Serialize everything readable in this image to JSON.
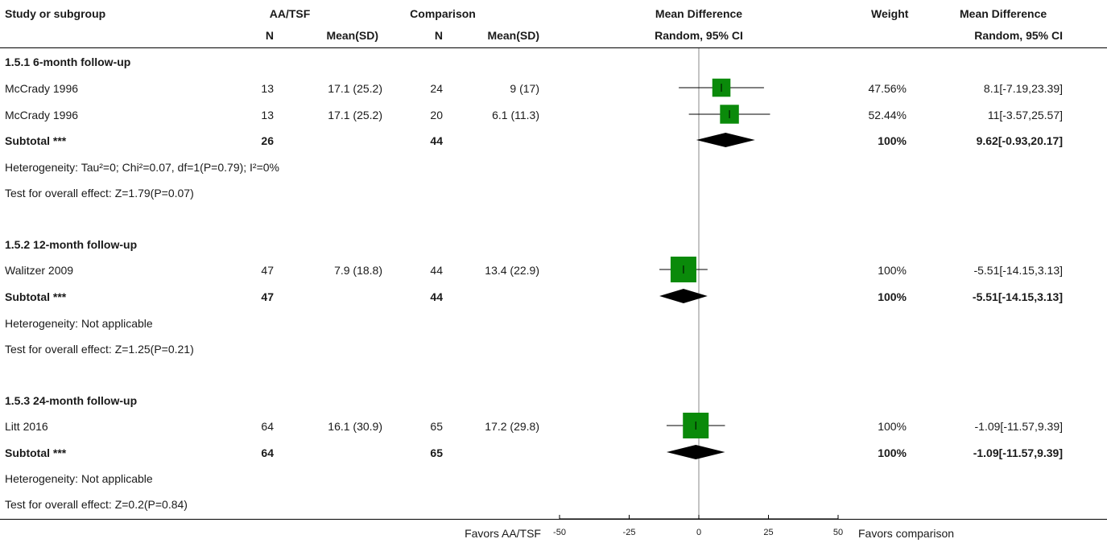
{
  "headers": {
    "study": "Study or subgroup",
    "group1": "AA/TSF",
    "group2": "Comparison",
    "md": "Mean Difference",
    "weight": "Weight",
    "md2": "Mean Difference",
    "n1": "N",
    "mean1": "Mean(SD)",
    "n2": "N",
    "mean2": "Mean(SD)",
    "md_method": "Random, 95% CI",
    "md2_method": "Random, 95% CI"
  },
  "subgroups": [
    {
      "title": "1.5.1 6-month follow-up",
      "studies": [
        {
          "name": "McCrady 1996",
          "n1": "13",
          "mean1": "17.1 (25.2)",
          "n2": "24",
          "mean2": "9 (17)",
          "weight": "47.56%",
          "ci": "8.1[-7.19,23.39]"
        },
        {
          "name": "McCrady 1996",
          "n1": "13",
          "mean1": "17.1 (25.2)",
          "n2": "20",
          "mean2": "6.1 (11.3)",
          "weight": "52.44%",
          "ci": "11[-3.57,25.57]"
        }
      ],
      "subtotal": {
        "label": "Subtotal ***",
        "n1": "26",
        "n2": "44",
        "weight": "100%",
        "ci": "9.62[-0.93,20.17]"
      },
      "heterogeneity": "Heterogeneity: Tau²=0; Chi²=0.07, df=1(P=0.79); I²=0%",
      "overall": "Test for overall effect: Z=1.79(P=0.07)"
    },
    {
      "title": "1.5.2 12-month follow-up",
      "studies": [
        {
          "name": "Walitzer 2009",
          "n1": "47",
          "mean1": "7.9 (18.8)",
          "n2": "44",
          "mean2": "13.4 (22.9)",
          "weight": "100%",
          "ci": "-5.51[-14.15,3.13]"
        }
      ],
      "subtotal": {
        "label": "Subtotal ***",
        "n1": "47",
        "n2": "44",
        "weight": "100%",
        "ci": "-5.51[-14.15,3.13]"
      },
      "heterogeneity": "Heterogeneity: Not applicable",
      "overall": "Test for overall effect: Z=1.25(P=0.21)"
    },
    {
      "title": "1.5.3 24-month follow-up",
      "studies": [
        {
          "name": "Litt 2016",
          "n1": "64",
          "mean1": "16.1 (30.9)",
          "n2": "65",
          "mean2": "17.2 (29.8)",
          "weight": "100%",
          "ci": "-1.09[-11.57,9.39]"
        }
      ],
      "subtotal": {
        "label": "Subtotal ***",
        "n1": "64",
        "n2": "65",
        "weight": "100%",
        "ci": "-1.09[-11.57,9.39]"
      },
      "heterogeneity": "Heterogeneity: Not applicable",
      "overall": "Test for overall effect: Z=0.2(P=0.84)"
    }
  ],
  "footer": {
    "favors_left": "Favors AA/TSF",
    "favors_right": "Favors comparison"
  },
  "chart_data": {
    "type": "forest",
    "xlim": [
      -50,
      50
    ],
    "ticks": [
      -50,
      -25,
      0,
      25,
      50
    ],
    "tick_labels": [
      "-50",
      "-25",
      "0",
      "25",
      "50"
    ],
    "null_line": 0,
    "marker_color": "#0a8a0a",
    "studies": [
      {
        "name": "McCrady 1996",
        "mean": 8.1,
        "lower": -7.19,
        "upper": 23.39,
        "weight": 47.56
      },
      {
        "name": "McCrady 1996",
        "mean": 11,
        "lower": -3.57,
        "upper": 25.57,
        "weight": 52.44
      },
      {
        "name": "Walitzer 2009",
        "mean": -5.51,
        "lower": -14.15,
        "upper": 3.13,
        "weight": 100
      },
      {
        "name": "Litt 2016",
        "mean": -1.09,
        "lower": -11.57,
        "upper": 9.39,
        "weight": 100
      }
    ],
    "subtotals": [
      {
        "mean": 9.62,
        "lower": -0.93,
        "upper": 20.17
      },
      {
        "mean": -5.51,
        "lower": -14.15,
        "upper": 3.13
      },
      {
        "mean": -1.09,
        "lower": -11.57,
        "upper": 9.39
      }
    ]
  }
}
